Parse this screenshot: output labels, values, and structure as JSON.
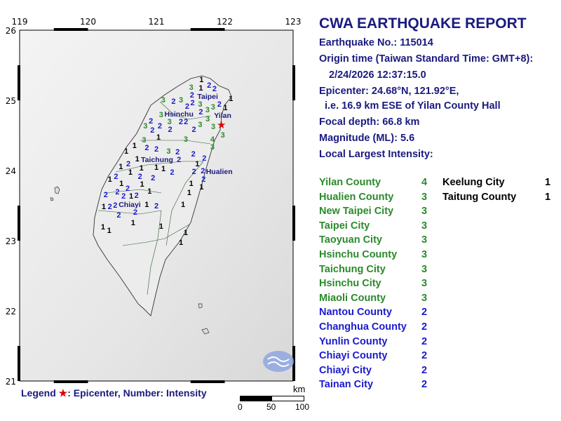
{
  "report": {
    "title": "CWA EARTHQUAKE REPORT",
    "earthquake_no": "Earthquake No.: 115014",
    "origin_label": "Origin time (Taiwan Standard Time: GMT+8):",
    "origin_time": "2/24/2026 12:37:15.0",
    "epicenter": "Epicenter: 24.68°N, 121.92°E,",
    "epicenter_rel": "i.e. 16.9 km ESE of Yilan County Hall",
    "depth": "Focal depth: 66.8 km",
    "magnitude": "Magnitude (ML): 5.6",
    "intensity_label": "Local Largest Intensity:"
  },
  "colors": {
    "text": "#1a1a80",
    "int1": "#000000",
    "int2": "#1a1acc",
    "int3": "#2a8a2a",
    "int4": "#2a8a2a",
    "epicenter": "#e00000"
  },
  "intensities_col1": [
    {
      "name": "Yilan County",
      "value": "4"
    },
    {
      "name": "Hualien County",
      "value": "3"
    },
    {
      "name": "New Taipei City",
      "value": "3"
    },
    {
      "name": "Taipei City",
      "value": "3"
    },
    {
      "name": "Taoyuan City",
      "value": "3"
    },
    {
      "name": "Hsinchu County",
      "value": "3"
    },
    {
      "name": "Taichung City",
      "value": "3"
    },
    {
      "name": "Hsinchu City",
      "value": "3"
    },
    {
      "name": "Miaoli County",
      "value": "3"
    },
    {
      "name": "Nantou County",
      "value": "2"
    },
    {
      "name": "Changhua County",
      "value": "2"
    },
    {
      "name": "Yunlin County",
      "value": "2"
    },
    {
      "name": "Chiayi County",
      "value": "2"
    },
    {
      "name": "Chiayi City",
      "value": "2"
    },
    {
      "name": "Tainan City",
      "value": "2"
    }
  ],
  "intensities_col2": [
    {
      "name": "Keelung City",
      "value": "1"
    },
    {
      "name": "Taitung County",
      "value": "1"
    }
  ],
  "map": {
    "lon_ticks": [
      "119",
      "120",
      "121",
      "122",
      "123"
    ],
    "lat_ticks": [
      "26",
      "25",
      "24",
      "23",
      "22",
      "21"
    ],
    "epicenter": {
      "lon": 121.92,
      "lat": 24.68
    },
    "cities": [
      {
        "name": "Taipei",
        "lon": 121.75,
        "lat": 25.06
      },
      {
        "name": "Hsinchu",
        "lon": 121.33,
        "lat": 24.81
      },
      {
        "name": "Yilan",
        "lon": 121.97,
        "lat": 24.79
      },
      {
        "name": "Taichung",
        "lon": 121.01,
        "lat": 24.16
      },
      {
        "name": "Hualien",
        "lon": 121.92,
        "lat": 23.99
      },
      {
        "name": "Chiayi",
        "lon": 120.61,
        "lat": 23.52
      }
    ],
    "stations": [
      [
        1,
        121.66,
        25.3
      ],
      [
        3,
        121.51,
        25.19
      ],
      [
        1,
        121.61,
        25.2
      ],
      [
        2,
        121.73,
        25.22
      ],
      [
        2,
        121.85,
        25.1
      ],
      [
        1,
        122.09,
        25.03
      ],
      [
        2,
        121.49,
        25.11
      ],
      [
        2,
        121.57,
        25.06
      ],
      [
        3,
        121.36,
        25.01
      ],
      [
        2,
        121.25,
        24.99
      ],
      [
        3,
        121.1,
        25.01
      ],
      [
        2,
        121.43,
        24.96
      ],
      [
        3,
        121.61,
        24.98
      ],
      [
        2,
        121.89,
        24.98
      ],
      [
        2,
        121.35,
        24.9
      ],
      [
        2,
        121.62,
        24.9
      ],
      [
        3,
        121.89,
        24.88
      ],
      [
        3,
        121.07,
        24.8
      ],
      [
        3,
        121.14,
        24.75
      ],
      [
        2,
        120.92,
        24.71
      ],
      [
        3,
        120.88,
        24.66
      ],
      [
        2,
        120.87,
        24.58
      ],
      [
        2,
        121.05,
        24.64
      ],
      [
        2,
        121.17,
        24.65
      ],
      [
        2,
        121.43,
        24.7
      ],
      [
        3,
        121.64,
        24.66
      ],
      [
        3,
        121.75,
        24.74
      ],
      [
        3,
        121.82,
        24.8
      ],
      [
        3,
        121.8,
        24.66
      ],
      [
        3,
        121.92,
        24.63
      ],
      [
        2,
        121.57,
        24.63
      ],
      [
        1,
        122.03,
        24.86
      ],
      [
        1,
        120.99,
        24.48
      ],
      [
        3,
        120.82,
        24.44
      ],
      [
        2,
        120.83,
        24.36
      ],
      [
        3,
        121.43,
        24.45
      ],
      [
        4,
        121.82,
        24.45
      ],
      [
        3,
        121.82,
        24.34
      ],
      [
        1,
        120.68,
        24.36
      ],
      [
        2,
        121.0,
        24.31
      ],
      [
        3,
        121.22,
        24.26
      ],
      [
        2,
        121.31,
        24.27
      ],
      [
        2,
        121.33,
        24.16
      ],
      [
        2,
        121.54,
        24.24
      ],
      [
        2,
        121.7,
        24.18
      ],
      [
        1,
        120.56,
        24.28
      ],
      [
        1,
        120.72,
        24.17
      ],
      [
        1,
        120.74,
        24.06
      ],
      [
        1,
        120.97,
        24.08
      ],
      [
        1,
        121.0,
        24.03
      ],
      [
        2,
        120.59,
        24.1
      ],
      [
        1,
        120.48,
        24.06
      ],
      [
        1,
        120.62,
        23.98
      ],
      [
        2,
        120.72,
        23.94
      ],
      [
        2,
        121.23,
        23.98
      ],
      [
        2,
        121.55,
        23.99
      ],
      [
        2,
        121.68,
        24.0
      ],
      [
        2,
        121.66,
        23.91
      ],
      [
        1,
        121.67,
        24.1
      ],
      [
        2,
        120.41,
        23.92
      ],
      [
        1,
        120.32,
        23.88
      ],
      [
        1,
        120.76,
        23.84
      ],
      [
        2,
        120.95,
        23.9
      ],
      [
        1,
        121.51,
        23.82
      ],
      [
        1,
        121.63,
        23.8
      ],
      [
        2,
        120.43,
        23.7
      ],
      [
        2,
        120.58,
        23.75
      ],
      [
        1,
        120.53,
        23.8
      ],
      [
        1,
        120.59,
        23.66
      ],
      [
        1,
        120.9,
        23.71
      ],
      [
        2,
        120.71,
        23.61
      ],
      [
        2,
        120.26,
        23.66
      ],
      [
        1,
        121.48,
        23.69
      ],
      [
        2,
        120.52,
        23.57
      ],
      [
        2,
        120.47,
        23.51
      ],
      [
        2,
        120.32,
        23.49
      ],
      [
        2,
        120.64,
        23.46
      ],
      [
        2,
        121.0,
        23.5
      ],
      [
        1,
        120.86,
        23.52
      ],
      [
        1,
        121.39,
        23.52
      ],
      [
        1,
        120.25,
        23.53
      ],
      [
        2,
        120.45,
        23.37
      ],
      [
        1,
        120.66,
        23.26
      ],
      [
        1,
        121.07,
        23.21
      ],
      [
        1,
        120.22,
        23.2
      ],
      [
        1,
        120.31,
        23.15
      ],
      [
        1,
        121.43,
        23.12
      ],
      [
        1,
        121.36,
        22.98
      ]
    ]
  },
  "legend": {
    "label": "Legend",
    "star": "★",
    "text": ": Epicenter, Number: Intensity"
  },
  "scale": {
    "unit": "km",
    "labels": [
      "0",
      "50",
      "100"
    ]
  }
}
